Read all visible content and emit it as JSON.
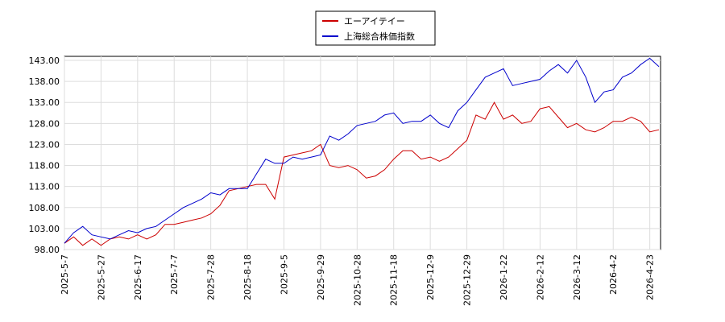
{
  "chart_data": {
    "type": "line",
    "categories": [
      "2025-5-7",
      null,
      null,
      null,
      "2025-5-27",
      null,
      null,
      null,
      "2025-6-17",
      null,
      null,
      null,
      "2025-7-7",
      null,
      null,
      null,
      "2025-7-28",
      null,
      null,
      null,
      "2025-8-18",
      null,
      null,
      null,
      "2025-9-5",
      null,
      null,
      null,
      "2025-9-29",
      null,
      null,
      null,
      "2025-10-28",
      null,
      null,
      null,
      "2025-11-18",
      null,
      null,
      null,
      "2025-12-9",
      null,
      null,
      null,
      "2025-12-29",
      null,
      null,
      null,
      "2026-1-22",
      null,
      null,
      null,
      "2026-2-12",
      null,
      null,
      null,
      "2026-3-12",
      null,
      null,
      null,
      "2026-4-2",
      null,
      null,
      null,
      "2026-4-23",
      null
    ],
    "series": [
      {
        "name": "エーアイテイー",
        "color": "#cc0000",
        "values": [
          99.5,
          101,
          99,
          100.5,
          99,
          100.5,
          101,
          100.5,
          101.5,
          100.5,
          101.5,
          104,
          104,
          104.5,
          105,
          105.5,
          106.5,
          108.5,
          112,
          112.5,
          113,
          113.5,
          113.5,
          110,
          120,
          120.5,
          121,
          121.5,
          123,
          118,
          117.5,
          118,
          117,
          115,
          115.5,
          117,
          119.5,
          121.5,
          121.5,
          119.5,
          120,
          119,
          120,
          122,
          124,
          130,
          129,
          133,
          129,
          130,
          128,
          128.5,
          131.5,
          132,
          129.5,
          127,
          128,
          126.5,
          126,
          127,
          128.5,
          128.5,
          129.5,
          128.5,
          126,
          126.5
        ]
      },
      {
        "name": "上海総合株価指数",
        "color": "#0000cc",
        "values": [
          99.5,
          102,
          103.5,
          101.5,
          101,
          100.5,
          101.5,
          102.5,
          102,
          103,
          103.5,
          105,
          106.5,
          108,
          109,
          110,
          111.5,
          111,
          112.5,
          112.5,
          112.5,
          116,
          119.5,
          118.5,
          118.5,
          120,
          119.5,
          120,
          120.5,
          125,
          124,
          125.5,
          127.5,
          128,
          128.5,
          130,
          130.5,
          128,
          128.5,
          128.5,
          130,
          128,
          127,
          131,
          133,
          136,
          139,
          140,
          141,
          137,
          137.5,
          138,
          138.5,
          140.5,
          142,
          140,
          143,
          139,
          133,
          135.5,
          136,
          139,
          140,
          142,
          143.5,
          141.5
        ]
      }
    ],
    "ylim": [
      98,
      143
    ],
    "yticks": [
      {
        "value": 98,
        "label": "98.00"
      },
      {
        "value": 103,
        "label": "103.00"
      },
      {
        "value": 108,
        "label": "108.00"
      },
      {
        "value": 113,
        "label": "113.00"
      },
      {
        "value": 118,
        "label": "118.00"
      },
      {
        "value": 123,
        "label": "123.00"
      },
      {
        "value": 128,
        "label": "128.00"
      },
      {
        "value": 133,
        "label": "133.00"
      },
      {
        "value": 138,
        "label": "138.00"
      },
      {
        "value": 143,
        "label": "143.00"
      }
    ],
    "grid": true,
    "legend": "top"
  }
}
